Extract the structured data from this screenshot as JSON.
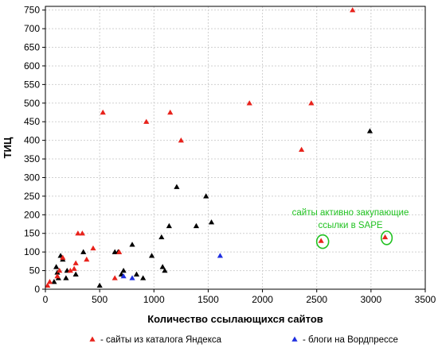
{
  "chart_data": {
    "type": "scatter",
    "xlabel": "Количество ссылающихся сайтов",
    "ylabel": "ТИЦ",
    "xlim": [
      0,
      3500
    ],
    "ylim": [
      0,
      760
    ],
    "xticks": [
      0,
      500,
      1000,
      1500,
      2000,
      2500,
      3000,
      3500
    ],
    "yticks": [
      0,
      50,
      100,
      150,
      200,
      250,
      300,
      350,
      400,
      450,
      500,
      550,
      600,
      650,
      700,
      750
    ],
    "grid": true,
    "legend_position": "bottom",
    "series": [
      {
        "name": "- сайты из каталога Яндекса",
        "color": "#e8221b",
        "points": [
          {
            "x": 20,
            "y": 10
          },
          {
            "x": 40,
            "y": 20
          },
          {
            "x": 110,
            "y": 35
          },
          {
            "x": 130,
            "y": 50
          },
          {
            "x": 160,
            "y": 85
          },
          {
            "x": 230,
            "y": 50
          },
          {
            "x": 265,
            "y": 55
          },
          {
            "x": 280,
            "y": 70
          },
          {
            "x": 300,
            "y": 150
          },
          {
            "x": 340,
            "y": 150
          },
          {
            "x": 380,
            "y": 80
          },
          {
            "x": 440,
            "y": 110
          },
          {
            "x": 530,
            "y": 475
          },
          {
            "x": 640,
            "y": 30
          },
          {
            "x": 680,
            "y": 100
          },
          {
            "x": 930,
            "y": 450
          },
          {
            "x": 1150,
            "y": 475
          },
          {
            "x": 1250,
            "y": 400
          },
          {
            "x": 1880,
            "y": 500
          },
          {
            "x": 2360,
            "y": 375
          },
          {
            "x": 2450,
            "y": 500
          },
          {
            "x": 2540,
            "y": 130
          },
          {
            "x": 2830,
            "y": 750
          },
          {
            "x": 3130,
            "y": 140
          }
        ]
      },
      {
        "name": "- блоги на Вордпрессе",
        "color": "#1f2fe0",
        "points": [
          {
            "x": 720,
            "y": 35
          },
          {
            "x": 800,
            "y": 30
          },
          {
            "x": 1610,
            "y": 90
          }
        ]
      },
      {
        "name": "",
        "color": "#000000",
        "points": [
          {
            "x": 80,
            "y": 20
          },
          {
            "x": 100,
            "y": 60
          },
          {
            "x": 110,
            "y": 45
          },
          {
            "x": 120,
            "y": 30
          },
          {
            "x": 140,
            "y": 90
          },
          {
            "x": 160,
            "y": 80
          },
          {
            "x": 190,
            "y": 30
          },
          {
            "x": 200,
            "y": 50
          },
          {
            "x": 280,
            "y": 40
          },
          {
            "x": 350,
            "y": 100
          },
          {
            "x": 500,
            "y": 10
          },
          {
            "x": 640,
            "y": 100
          },
          {
            "x": 670,
            "y": 100
          },
          {
            "x": 700,
            "y": 40
          },
          {
            "x": 720,
            "y": 50
          },
          {
            "x": 800,
            "y": 120
          },
          {
            "x": 840,
            "y": 40
          },
          {
            "x": 900,
            "y": 30
          },
          {
            "x": 980,
            "y": 90
          },
          {
            "x": 1070,
            "y": 140
          },
          {
            "x": 1080,
            "y": 60
          },
          {
            "x": 1100,
            "y": 50
          },
          {
            "x": 1140,
            "y": 170
          },
          {
            "x": 1210,
            "y": 275
          },
          {
            "x": 1390,
            "y": 170
          },
          {
            "x": 1480,
            "y": 250
          },
          {
            "x": 1530,
            "y": 180
          },
          {
            "x": 2990,
            "y": 425
          }
        ]
      }
    ],
    "annotations": [
      {
        "text": "сайты активно закупающие",
        "color": "#22c222"
      },
      {
        "text": "ссылки в SAPE",
        "color": "#22c222"
      }
    ],
    "highlights": [
      {
        "x": 2540,
        "y": 130,
        "rx_data": 55,
        "ry_data": 18,
        "color": "#22c222"
      },
      {
        "x": 3130,
        "y": 140,
        "rx_data": 50,
        "ry_data": 18,
        "color": "#22c222"
      }
    ]
  }
}
